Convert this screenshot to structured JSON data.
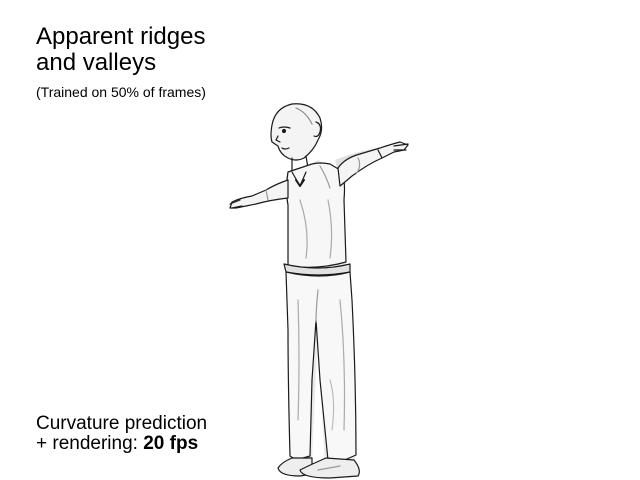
{
  "title": {
    "line1": "Apparent ridges",
    "line2": "and valleys"
  },
  "subtitle": "(Trained on 50% of frames)",
  "caption": {
    "line1": "Curvature prediction",
    "line2_prefix": "+ rendering: ",
    "line2_value": "20 fps"
  },
  "figure": {
    "icon": "line-drawn-human-figure-icon",
    "stroke_color": "#1a1a1a",
    "shade_color": "#d8d8d8"
  }
}
